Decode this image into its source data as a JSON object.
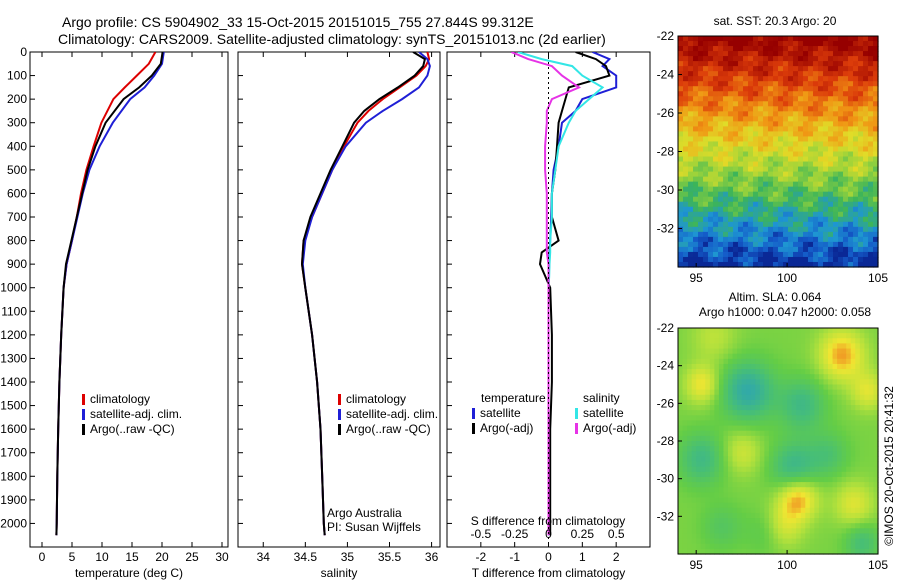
{
  "header": {
    "line1": "Argo profile: CS 5904902_33 15-Oct-2015 20151015_755 27.844S 99.312E",
    "line2": "Climatology: CARS2009. Satellite-adjusted climatology: synTS_20151013.nc (2d earlier)"
  },
  "colors": {
    "climatology": "#dd0000",
    "satellite": "#1f1fd6",
    "argo": "#000000",
    "cyan": "#33e6e6",
    "magenta": "#e633e6"
  },
  "chart_data": [
    {
      "id": "temperature-profile",
      "type": "line",
      "xlabel": "temperature (deg C)",
      "xlim": [
        -2,
        31
      ],
      "ylim": [
        0,
        2100
      ],
      "xticks": [
        0,
        5,
        10,
        15,
        20,
        25,
        30
      ],
      "yticks": [
        0,
        100,
        200,
        300,
        400,
        500,
        600,
        700,
        800,
        900,
        1000,
        1100,
        1200,
        1300,
        1400,
        1500,
        1600,
        1700,
        1800,
        1900,
        2000
      ],
      "legend": [
        "climatology",
        "satellite-adj. clim.",
        "Argo(..raw -QC)"
      ],
      "depth": [
        0,
        50,
        100,
        150,
        200,
        300,
        400,
        500,
        600,
        700,
        800,
        900,
        1000,
        1200,
        1400,
        1600,
        1800,
        2000,
        2050
      ],
      "series": [
        {
          "name": "climatology",
          "color": "#dd0000",
          "values": [
            18.9,
            17.8,
            15.8,
            13.8,
            11.9,
            9.9,
            8.6,
            7.4,
            6.5,
            5.8,
            5.0,
            4.1,
            3.6,
            3.2,
            2.9,
            2.7,
            2.55,
            2.45,
            2.4
          ]
        },
        {
          "name": "satellite-adj. clim.",
          "color": "#1f1fd6",
          "values": [
            20.3,
            20.0,
            18.7,
            17.1,
            14.7,
            11.8,
            9.6,
            7.9,
            6.8,
            5.9,
            5.0,
            4.1,
            3.6,
            3.2,
            2.9,
            2.7,
            2.55,
            2.45,
            2.4
          ]
        },
        {
          "name": "Argo(..raw -QC)",
          "color": "#000000",
          "values": [
            20.1,
            19.8,
            18.3,
            16.2,
            13.6,
            10.6,
            8.9,
            7.6,
            6.7,
            5.8,
            4.9,
            4.0,
            3.6,
            3.2,
            2.9,
            2.7,
            2.55,
            2.45,
            2.4
          ]
        }
      ]
    },
    {
      "id": "salinity-profile",
      "type": "line",
      "xlabel": "salinity",
      "xlim": [
        33.7,
        36.1
      ],
      "ylim": [
        0,
        2100
      ],
      "xticks": [
        34,
        34.5,
        35,
        35.5,
        36
      ],
      "legend": [
        "climatology",
        "satellite-adj. clim.",
        "Argo(..raw -QC)"
      ],
      "annotation": [
        "Argo Australia",
        "PI: Susan Wijffels"
      ],
      "depth": [
        0,
        30,
        60,
        100,
        150,
        200,
        250,
        300,
        400,
        500,
        600,
        700,
        800,
        900,
        1000,
        1200,
        1400,
        1600,
        1800,
        2000,
        2050
      ],
      "series": [
        {
          "name": "climatology",
          "color": "#dd0000",
          "values": [
            35.95,
            35.97,
            35.93,
            35.82,
            35.62,
            35.42,
            35.25,
            35.12,
            34.96,
            34.82,
            34.7,
            34.58,
            34.48,
            34.46,
            34.5,
            34.58,
            34.64,
            34.68,
            34.7,
            34.72,
            34.73
          ]
        },
        {
          "name": "satellite-adj. clim.",
          "color": "#1f1fd6",
          "values": [
            35.85,
            35.95,
            35.98,
            35.95,
            35.85,
            35.65,
            35.42,
            35.22,
            34.98,
            34.82,
            34.7,
            34.58,
            34.5,
            34.47,
            34.5,
            34.58,
            34.64,
            34.68,
            34.7,
            34.72,
            34.73
          ]
        },
        {
          "name": "Argo(..raw -QC)",
          "color": "#000000",
          "values": [
            35.78,
            35.92,
            35.9,
            35.8,
            35.6,
            35.38,
            35.2,
            35.08,
            34.94,
            34.8,
            34.68,
            34.56,
            34.48,
            34.46,
            34.5,
            34.58,
            34.64,
            34.68,
            34.7,
            34.72,
            34.73
          ]
        }
      ]
    },
    {
      "id": "difference-profile",
      "type": "line",
      "xlabel": "T difference from climatology",
      "xlabel_top": "S difference from climatology",
      "xlim": [
        -3,
        3
      ],
      "ylim": [
        0,
        2100
      ],
      "xticks": [
        -2,
        -1,
        0,
        1,
        2
      ],
      "xticks_top": [
        {
          "v": -2,
          "label": "-0.5"
        },
        {
          "v": -1,
          "label": "-0.25"
        },
        {
          "v": 0,
          "label": "0"
        },
        {
          "v": 1,
          "label": "0.25"
        },
        {
          "v": 2,
          "label": "0.5"
        }
      ],
      "legend_left": {
        "title": "temperature",
        "items": [
          {
            "label": "satellite",
            "color": "#1f1fd6"
          },
          {
            "label": "Argo(-adj)",
            "color": "#000000"
          }
        ]
      },
      "legend_right": {
        "title": "salinity",
        "items": [
          {
            "label": "satellite",
            "color": "#33e6e6"
          },
          {
            "label": "Argo(-adj)",
            "color": "#e633e6"
          }
        ]
      },
      "depth": [
        0,
        30,
        60,
        100,
        150,
        200,
        250,
        300,
        400,
        500,
        600,
        700,
        800,
        850,
        900,
        950,
        1000,
        1200,
        1400,
        1600,
        1800,
        2000,
        2050
      ],
      "series": [
        {
          "name": "satellite T",
          "color": "#1f1fd6",
          "values": [
            1.3,
            1.8,
            1.6,
            2.0,
            2.0,
            1.0,
            0.8,
            0.4,
            0.3,
            0.15,
            0.1,
            0.08,
            0.05,
            0.03,
            0.02,
            0.01,
            0,
            0,
            0,
            0,
            0,
            0,
            0
          ]
        },
        {
          "name": "Argo T",
          "color": "#000000",
          "values": [
            0.8,
            1.4,
            1.7,
            1.8,
            0.6,
            0.5,
            0.4,
            0.3,
            0.25,
            0.2,
            0.1,
            0.1,
            0.3,
            -0.2,
            -0.25,
            -0.1,
            0.05,
            0.1,
            0.1,
            0.05,
            0.05,
            0.05,
            0.05
          ]
        },
        {
          "name": "satellite S",
          "color": "#33e6e6",
          "values": [
            -0.9,
            -0.2,
            0.7,
            1.0,
            1.6,
            1.2,
            0.8,
            0.6,
            0.3,
            0.2,
            0.1,
            0.1,
            0.05,
            0.05,
            0.03,
            0.02,
            0,
            0,
            0,
            0,
            0,
            0,
            0
          ]
        },
        {
          "name": "Argo S",
          "color": "#e633e6",
          "values": [
            -1.1,
            -0.6,
            0.1,
            0.4,
            0.9,
            0.1,
            -0.05,
            -0.05,
            -0.1,
            -0.1,
            -0.05,
            -0.05,
            -0.05,
            -0.05,
            0,
            0,
            0,
            0,
            0,
            0,
            0,
            0,
            0
          ]
        }
      ]
    },
    {
      "id": "sst-map",
      "type": "heatmap",
      "title": "sat. SST: 20.3 Argo: 20",
      "xlim": [
        94,
        105
      ],
      "ylim": [
        -34,
        -22
      ],
      "xticks": [
        95,
        100,
        105
      ],
      "yticks": [
        -22,
        -24,
        -26,
        -28,
        -30,
        -32
      ]
    },
    {
      "id": "sla-map",
      "type": "heatmap",
      "title_line1": "Altim. SLA: 0.064",
      "title_line2": "Argo h1000: 0.047 h2000: 0.058",
      "xlim": [
        94,
        105
      ],
      "ylim": [
        -34,
        -22
      ],
      "xticks": [
        95,
        100,
        105
      ],
      "yticks": [
        -22,
        -24,
        -26,
        -28,
        -30,
        -32
      ],
      "side_label": "©IMOS 20-Oct-2015 20:41:32"
    }
  ]
}
